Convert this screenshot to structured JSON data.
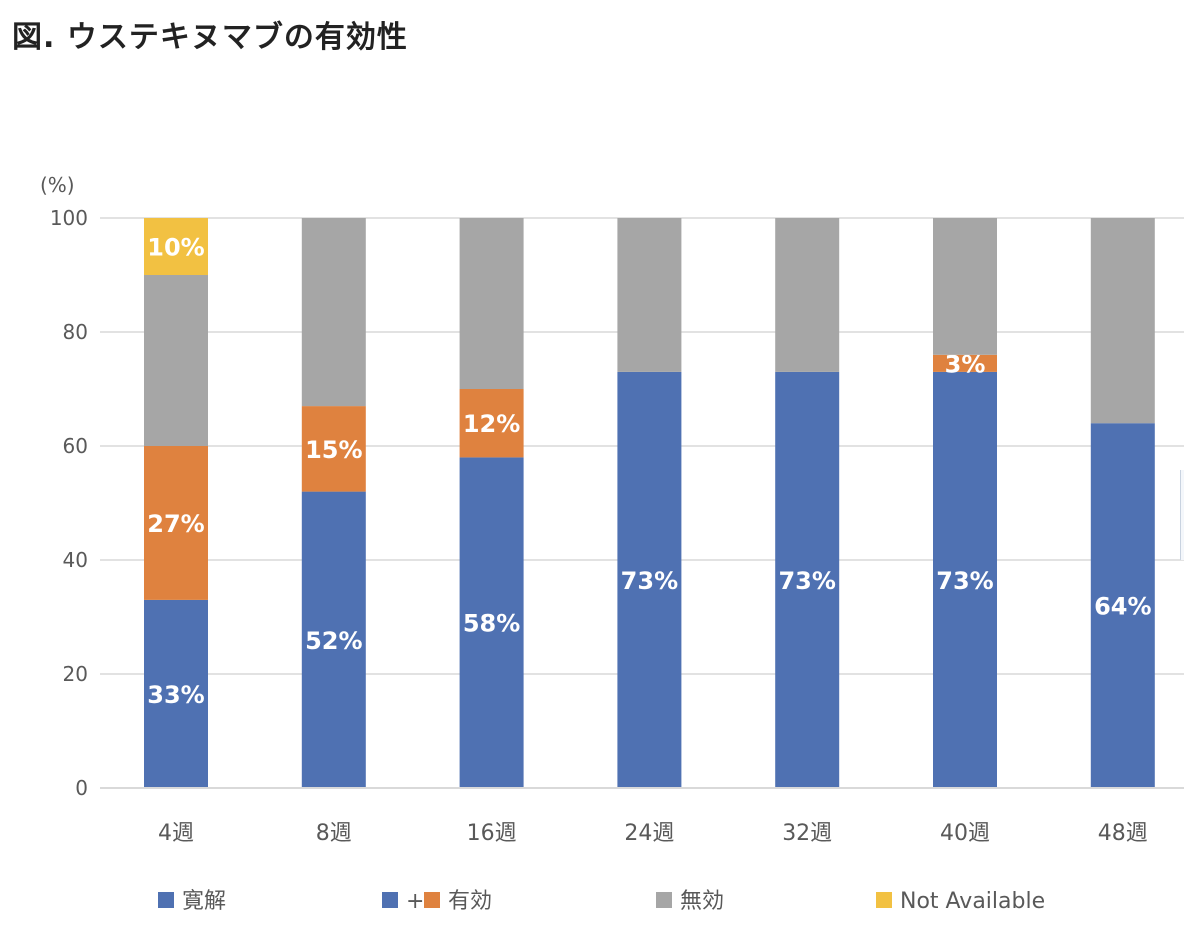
{
  "title": "図. ウステキヌマブの有効性",
  "chart_data": {
    "type": "bar",
    "stacked": true,
    "unit_label": "(%)",
    "ylim": [
      0,
      100
    ],
    "yticks": [
      0,
      20,
      40,
      60,
      80,
      100
    ],
    "categories": [
      "4週",
      "8週",
      "16週",
      "24週",
      "32週",
      "40週",
      "48週"
    ],
    "series": [
      {
        "name": "寛解",
        "color": "#4f71b2",
        "values": [
          33,
          52,
          58,
          73,
          73,
          73,
          64
        ],
        "labels": [
          "33%",
          "52%",
          "58%",
          "73%",
          "73%",
          "73%",
          "64%"
        ]
      },
      {
        "name": "有効",
        "color": "#df823f",
        "values": [
          27,
          15,
          12,
          0,
          0,
          3,
          0
        ],
        "labels": [
          "27%",
          "15%",
          "12%",
          "",
          "",
          "3%",
          ""
        ]
      },
      {
        "name": "無効",
        "color": "#a6a6a6",
        "values": [
          30,
          33,
          30,
          27,
          27,
          24,
          36
        ],
        "labels": [
          "",
          "",
          "",
          "",
          "",
          "",
          ""
        ]
      },
      {
        "name": "Not Available",
        "color": "#f2c142",
        "values": [
          10,
          0,
          0,
          0,
          0,
          0,
          0
        ],
        "labels": [
          "10%",
          "",
          "",
          "",
          "",
          "",
          ""
        ]
      }
    ],
    "legend": [
      {
        "markers": [
          "#4f71b2"
        ],
        "label": "寛解"
      },
      {
        "markers": [
          "#4f71b2",
          "#df823f"
        ],
        "joiner": "+",
        "label": "有効"
      },
      {
        "markers": [
          "#a6a6a6"
        ],
        "label": "無効"
      },
      {
        "markers": [
          "#f2c142"
        ],
        "label": "Not Available"
      }
    ],
    "legend_position": "bottom",
    "grid": true
  }
}
